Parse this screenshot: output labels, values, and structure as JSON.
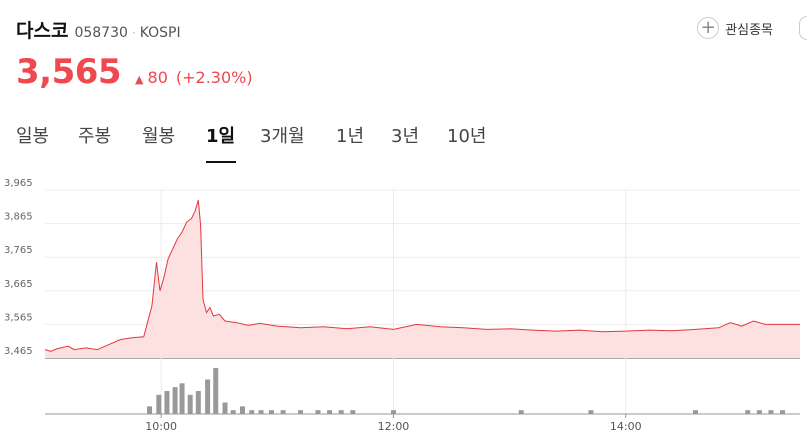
{
  "header": {
    "stock_name": "다스코",
    "stock_code": "058730",
    "separator": "·",
    "market": "KOSPI",
    "watchlist_label": "관심종목"
  },
  "quote": {
    "price": "3,565",
    "arrow": "▲",
    "change": "80",
    "change_pct": "(+2.30%)",
    "color_up": "#f0484f"
  },
  "tabs": [
    {
      "label": "일봉",
      "active": false
    },
    {
      "label": "주봉",
      "active": false
    },
    {
      "label": "월봉",
      "active": false
    },
    {
      "label": "1일",
      "active": true
    },
    {
      "label": "3개월",
      "active": false
    },
    {
      "label": "1년",
      "active": false
    },
    {
      "label": "3년",
      "active": false
    },
    {
      "label": "10년",
      "active": false
    }
  ],
  "chart_data": {
    "type": "area",
    "y_ticks": [
      "3,965",
      "3,865",
      "3,765",
      "3,665",
      "3,565",
      "3,465"
    ],
    "ylim": [
      3465,
      3965
    ],
    "baseline": 3485,
    "x_ticks": [
      "10:00",
      "12:00",
      "14:00"
    ],
    "xlim_hours": [
      9.0,
      15.5
    ],
    "price_points": [
      [
        9.0,
        3490
      ],
      [
        9.05,
        3485
      ],
      [
        9.1,
        3492
      ],
      [
        9.2,
        3500
      ],
      [
        9.25,
        3490
      ],
      [
        9.35,
        3495
      ],
      [
        9.45,
        3490
      ],
      [
        9.55,
        3505
      ],
      [
        9.65,
        3520
      ],
      [
        9.75,
        3525
      ],
      [
        9.85,
        3528
      ],
      [
        9.92,
        3620
      ],
      [
        9.96,
        3750
      ],
      [
        9.99,
        3665
      ],
      [
        10.02,
        3700
      ],
      [
        10.06,
        3760
      ],
      [
        10.1,
        3790
      ],
      [
        10.14,
        3820
      ],
      [
        10.18,
        3840
      ],
      [
        10.22,
        3870
      ],
      [
        10.26,
        3880
      ],
      [
        10.29,
        3900
      ],
      [
        10.32,
        3935
      ],
      [
        10.34,
        3860
      ],
      [
        10.36,
        3640
      ],
      [
        10.39,
        3600
      ],
      [
        10.42,
        3615
      ],
      [
        10.45,
        3590
      ],
      [
        10.5,
        3595
      ],
      [
        10.55,
        3575
      ],
      [
        10.65,
        3570
      ],
      [
        10.75,
        3562
      ],
      [
        10.85,
        3568
      ],
      [
        11.0,
        3560
      ],
      [
        11.2,
        3555
      ],
      [
        11.4,
        3558
      ],
      [
        11.6,
        3552
      ],
      [
        11.8,
        3558
      ],
      [
        12.0,
        3550
      ],
      [
        12.2,
        3565
      ],
      [
        12.4,
        3558
      ],
      [
        12.6,
        3555
      ],
      [
        12.8,
        3550
      ],
      [
        13.0,
        3552
      ],
      [
        13.2,
        3548
      ],
      [
        13.4,
        3545
      ],
      [
        13.6,
        3548
      ],
      [
        13.8,
        3543
      ],
      [
        14.0,
        3545
      ],
      [
        14.2,
        3548
      ],
      [
        14.4,
        3546
      ],
      [
        14.6,
        3550
      ],
      [
        14.8,
        3555
      ],
      [
        14.9,
        3570
      ],
      [
        15.0,
        3560
      ],
      [
        15.1,
        3575
      ],
      [
        15.2,
        3565
      ],
      [
        15.3,
        3565
      ],
      [
        15.5,
        3565
      ]
    ],
    "volume_points": [
      [
        9.9,
        2
      ],
      [
        9.98,
        5
      ],
      [
        10.05,
        6
      ],
      [
        10.12,
        7
      ],
      [
        10.18,
        8
      ],
      [
        10.25,
        5
      ],
      [
        10.32,
        6
      ],
      [
        10.4,
        9
      ],
      [
        10.47,
        12
      ],
      [
        10.55,
        3
      ],
      [
        10.62,
        1
      ],
      [
        10.7,
        2
      ],
      [
        10.78,
        1
      ],
      [
        10.86,
        1
      ],
      [
        10.95,
        1
      ],
      [
        11.05,
        1
      ],
      [
        11.2,
        1
      ],
      [
        11.35,
        1
      ],
      [
        11.45,
        1
      ],
      [
        11.55,
        1
      ],
      [
        11.65,
        1
      ],
      [
        12.0,
        1
      ],
      [
        13.1,
        1
      ],
      [
        13.7,
        1
      ],
      [
        14.6,
        1
      ],
      [
        15.05,
        1
      ],
      [
        15.15,
        1
      ],
      [
        15.25,
        1
      ],
      [
        15.35,
        1
      ]
    ],
    "volume_max": 12,
    "line_color": "#e0393f",
    "fill_color": "#fde0e0",
    "grid": true
  }
}
